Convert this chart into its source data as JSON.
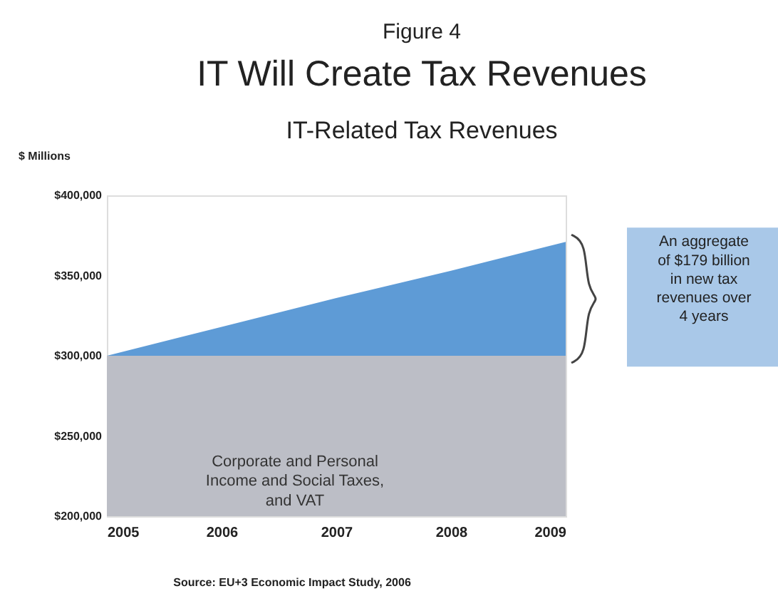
{
  "chart_data": {
    "type": "area",
    "title": "IT Will Create Tax Revenues",
    "subtitle": "IT-Related Tax Revenues",
    "ylabel": "$ Millions",
    "x": [
      2005,
      2006,
      2007,
      2008,
      2009
    ],
    "series": [
      {
        "color": "#5e9bd6",
        "values": [
          300000,
          318000,
          336000,
          353000,
          371000
        ]
      },
      {
        "color": "#bcbec6",
        "values": [
          300000,
          300000,
          300000,
          300000,
          300000
        ]
      }
    ],
    "xlim": [
      2005,
      2009
    ],
    "xticks": [
      2005,
      2006,
      2007,
      2008,
      2009
    ],
    "ylim": [
      200000,
      400000
    ],
    "yticks": [
      {
        "value": 200000,
        "label": "$200,000"
      },
      {
        "value": 250000,
        "label": "$250,000"
      },
      {
        "value": 300000,
        "label": "$300,000"
      },
      {
        "value": 350000,
        "label": "$350,000"
      },
      {
        "value": 400000,
        "label": "$400,000"
      }
    ],
    "annotations": [
      "Figure 4",
      "Corporate and Personal\nIncome and Social Taxes,\nand VAT",
      "An aggregate\nof $179 billion\nin new tax\nrevenues over\n4 years",
      "Source: EU+3 Economic Impact Study, 2006"
    ]
  }
}
